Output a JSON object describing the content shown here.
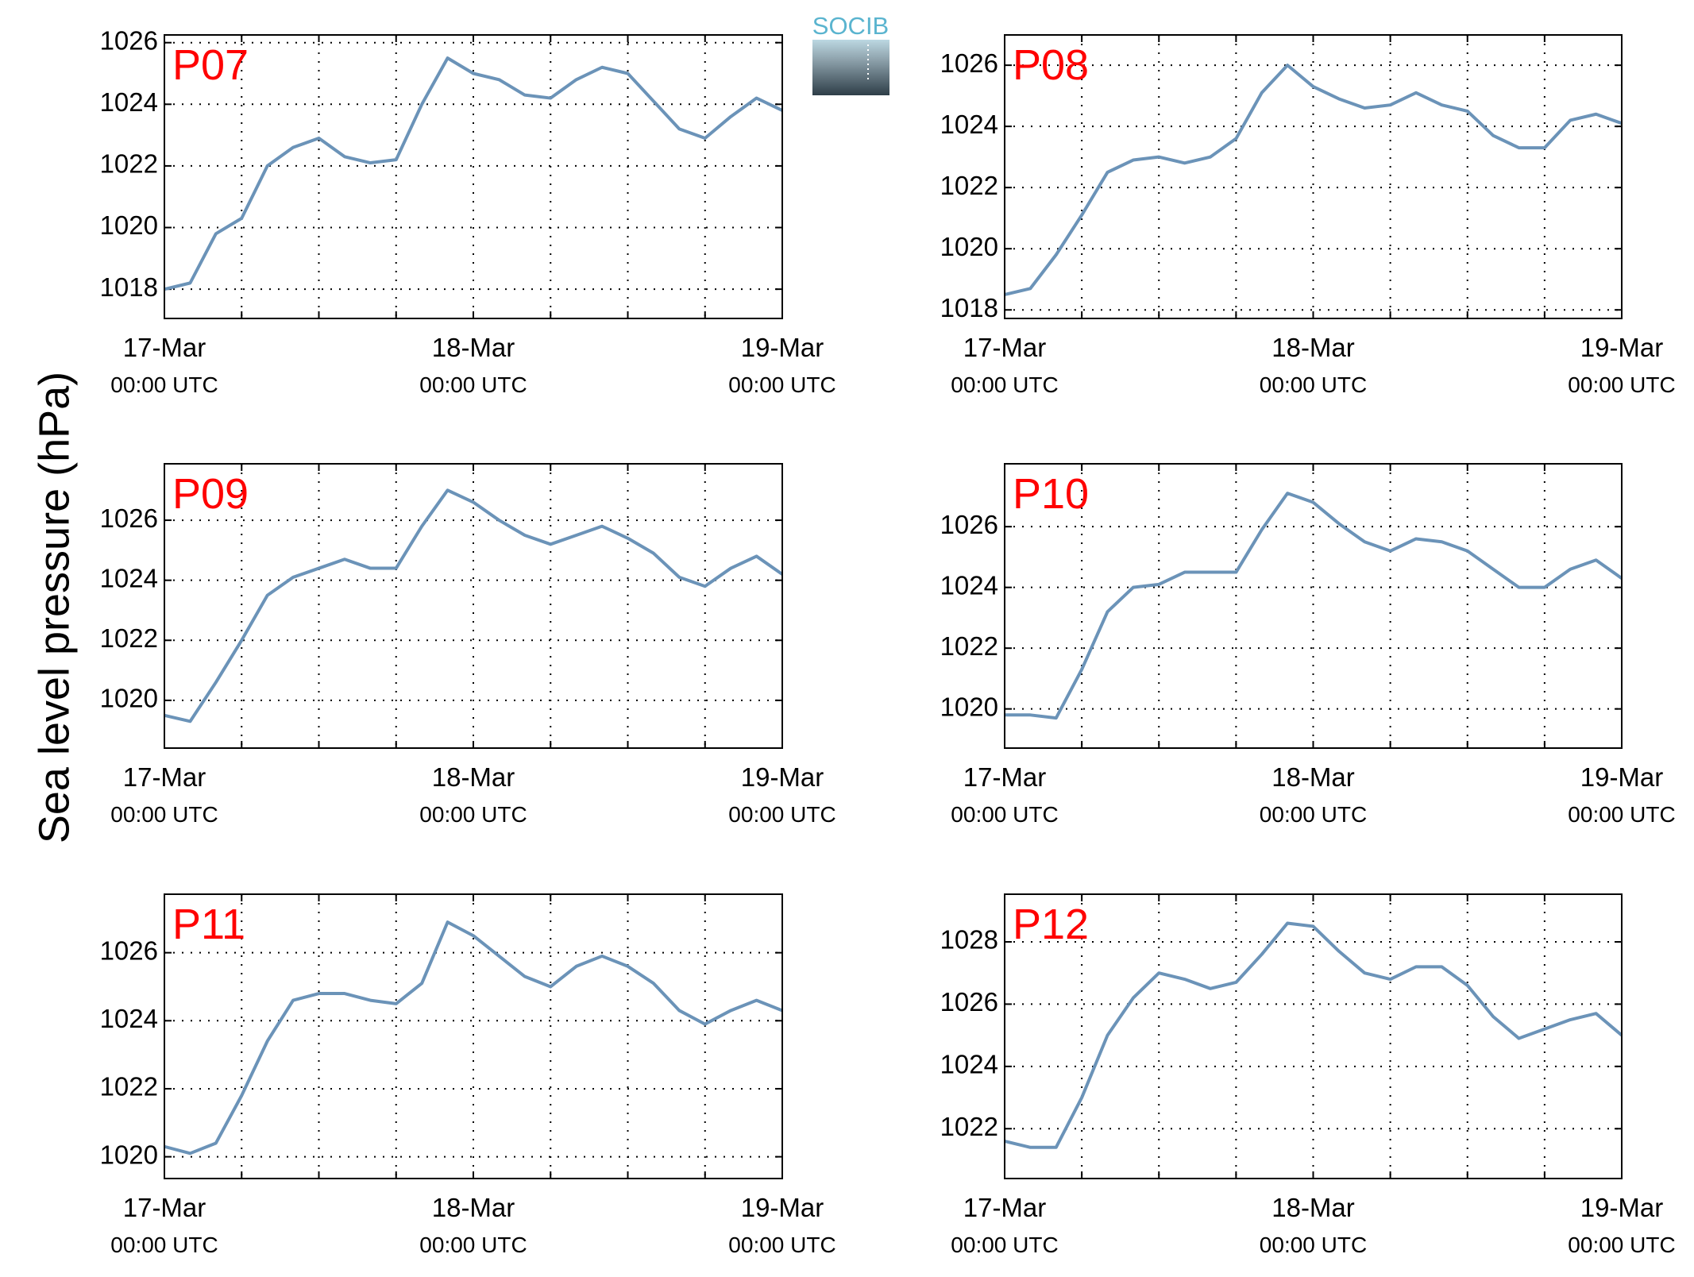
{
  "ylabel": "Sea level pressure (hPa)",
  "logo": "SOCIB",
  "chart_data": [
    {
      "type": "line",
      "title": "P07",
      "color": "#6b93b8",
      "grid": true,
      "x": [
        0,
        2,
        4,
        6,
        8,
        10,
        12,
        14,
        16,
        18,
        20,
        22,
        24,
        26,
        28,
        30,
        32,
        34,
        36,
        38,
        40,
        42,
        44,
        46,
        48
      ],
      "values": [
        1018.0,
        1018.2,
        1019.8,
        1020.3,
        1022.0,
        1022.6,
        1022.9,
        1022.3,
        1022.1,
        1022.2,
        1024.0,
        1025.5,
        1025.0,
        1024.8,
        1024.3,
        1024.2,
        1024.8,
        1025.2,
        1025.0,
        1024.1,
        1023.2,
        1022.9,
        1023.6,
        1024.2,
        1023.8
      ],
      "xlim": [
        0,
        48
      ],
      "ylim": [
        1017.05,
        1026.25
      ],
      "xticks": [
        {
          "value": 0,
          "label": [
            "17-Mar",
            "00:00 UTC"
          ]
        },
        {
          "value": 6,
          "label": null
        },
        {
          "value": 12,
          "label": null
        },
        {
          "value": 18,
          "label": null
        },
        {
          "value": 24,
          "label": [
            "18-Mar",
            "00:00 UTC"
          ]
        },
        {
          "value": 30,
          "label": null
        },
        {
          "value": 36,
          "label": null
        },
        {
          "value": 42,
          "label": null
        },
        {
          "value": 48,
          "label": [
            "19-Mar",
            "00:00 UTC"
          ]
        }
      ],
      "yticks": [
        1018,
        1020,
        1022,
        1024,
        1026
      ]
    },
    {
      "type": "line",
      "title": "P08",
      "color": "#6b93b8",
      "grid": true,
      "x": [
        0,
        2,
        4,
        6,
        8,
        10,
        12,
        14,
        16,
        18,
        20,
        22,
        24,
        26,
        28,
        30,
        32,
        34,
        36,
        38,
        40,
        42,
        44,
        46,
        48
      ],
      "values": [
        1018.5,
        1018.7,
        1019.8,
        1021.1,
        1022.5,
        1022.9,
        1023.0,
        1022.8,
        1023.0,
        1023.6,
        1025.1,
        1026.0,
        1025.3,
        1024.9,
        1024.6,
        1024.7,
        1025.1,
        1024.7,
        1024.5,
        1023.7,
        1023.3,
        1023.3,
        1024.2,
        1024.4,
        1024.1
      ],
      "xlim": [
        0,
        48
      ],
      "ylim": [
        1017.72,
        1026.99
      ],
      "xticks": [
        {
          "value": 0,
          "label": [
            "17-Mar",
            "00:00 UTC"
          ]
        },
        {
          "value": 6,
          "label": null
        },
        {
          "value": 12,
          "label": null
        },
        {
          "value": 18,
          "label": null
        },
        {
          "value": 24,
          "label": [
            "18-Mar",
            "00:00 UTC"
          ]
        },
        {
          "value": 30,
          "label": null
        },
        {
          "value": 36,
          "label": null
        },
        {
          "value": 42,
          "label": null
        },
        {
          "value": 48,
          "label": [
            "19-Mar",
            "00:00 UTC"
          ]
        }
      ],
      "yticks": [
        1018,
        1020,
        1022,
        1024,
        1026
      ]
    },
    {
      "type": "line",
      "title": "P09",
      "color": "#6b93b8",
      "grid": true,
      "x": [
        0,
        2,
        4,
        6,
        8,
        10,
        12,
        14,
        16,
        18,
        20,
        22,
        24,
        26,
        28,
        30,
        32,
        34,
        36,
        38,
        40,
        42,
        44,
        46,
        48
      ],
      "values": [
        1019.5,
        1019.3,
        1020.6,
        1022.0,
        1023.5,
        1024.1,
        1024.4,
        1024.7,
        1024.4,
        1024.4,
        1025.8,
        1027.0,
        1026.6,
        1026.0,
        1025.5,
        1025.2,
        1025.5,
        1025.8,
        1025.4,
        1024.9,
        1024.1,
        1023.8,
        1024.4,
        1024.8,
        1024.2
      ],
      "xlim": [
        0,
        48
      ],
      "ylim": [
        1018.41,
        1027.88
      ],
      "xticks": [
        {
          "value": 0,
          "label": [
            "17-Mar",
            "00:00 UTC"
          ]
        },
        {
          "value": 6,
          "label": null
        },
        {
          "value": 12,
          "label": null
        },
        {
          "value": 18,
          "label": null
        },
        {
          "value": 24,
          "label": [
            "18-Mar",
            "00:00 UTC"
          ]
        },
        {
          "value": 30,
          "label": null
        },
        {
          "value": 36,
          "label": null
        },
        {
          "value": 42,
          "label": null
        },
        {
          "value": 48,
          "label": [
            "19-Mar",
            "00:00 UTC"
          ]
        }
      ],
      "yticks": [
        1020,
        1022,
        1024,
        1026
      ]
    },
    {
      "type": "line",
      "title": "P10",
      "color": "#6b93b8",
      "grid": true,
      "x": [
        0,
        2,
        4,
        6,
        8,
        10,
        12,
        14,
        16,
        18,
        20,
        22,
        24,
        26,
        28,
        30,
        32,
        34,
        36,
        38,
        40,
        42,
        44,
        46,
        48
      ],
      "values": [
        1019.8,
        1019.8,
        1019.7,
        1021.3,
        1023.2,
        1024.0,
        1024.1,
        1024.5,
        1024.5,
        1024.5,
        1025.9,
        1027.1,
        1026.8,
        1026.1,
        1025.5,
        1025.2,
        1025.6,
        1025.5,
        1025.2,
        1024.6,
        1024.0,
        1024.0,
        1024.6,
        1024.9,
        1024.3
      ],
      "xlim": [
        0,
        48
      ],
      "ylim": [
        1018.71,
        1028.07
      ],
      "xticks": [
        {
          "value": 0,
          "label": [
            "17-Mar",
            "00:00 UTC"
          ]
        },
        {
          "value": 6,
          "label": null
        },
        {
          "value": 12,
          "label": null
        },
        {
          "value": 18,
          "label": null
        },
        {
          "value": 24,
          "label": [
            "18-Mar",
            "00:00 UTC"
          ]
        },
        {
          "value": 30,
          "label": null
        },
        {
          "value": 36,
          "label": null
        },
        {
          "value": 42,
          "label": null
        },
        {
          "value": 48,
          "label": [
            "19-Mar",
            "00:00 UTC"
          ]
        }
      ],
      "yticks": [
        1020,
        1022,
        1024,
        1026
      ]
    },
    {
      "type": "line",
      "title": "P11",
      "color": "#6b93b8",
      "grid": true,
      "x": [
        0,
        2,
        4,
        6,
        8,
        10,
        12,
        14,
        16,
        18,
        20,
        22,
        24,
        26,
        28,
        30,
        32,
        34,
        36,
        38,
        40,
        42,
        44,
        46,
        48
      ],
      "values": [
        1020.3,
        1020.1,
        1020.4,
        1021.8,
        1023.4,
        1024.6,
        1024.8,
        1024.8,
        1024.6,
        1024.5,
        1025.1,
        1026.9,
        1026.5,
        1025.9,
        1025.3,
        1025.0,
        1025.6,
        1025.9,
        1025.6,
        1025.1,
        1024.3,
        1023.9,
        1024.3,
        1024.6,
        1024.3
      ],
      "xlim": [
        0,
        48
      ],
      "ylim": [
        1019.36,
        1027.72
      ],
      "xticks": [
        {
          "value": 0,
          "label": [
            "17-Mar",
            "00:00 UTC"
          ]
        },
        {
          "value": 6,
          "label": null
        },
        {
          "value": 12,
          "label": null
        },
        {
          "value": 18,
          "label": null
        },
        {
          "value": 24,
          "label": [
            "18-Mar",
            "00:00 UTC"
          ]
        },
        {
          "value": 30,
          "label": null
        },
        {
          "value": 36,
          "label": null
        },
        {
          "value": 42,
          "label": null
        },
        {
          "value": 48,
          "label": [
            "19-Mar",
            "00:00 UTC"
          ]
        }
      ],
      "yticks": [
        1020,
        1022,
        1024,
        1026
      ]
    },
    {
      "type": "line",
      "title": "P12",
      "color": "#6b93b8",
      "grid": true,
      "x": [
        0,
        2,
        4,
        6,
        8,
        10,
        12,
        14,
        16,
        18,
        20,
        22,
        24,
        26,
        28,
        30,
        32,
        34,
        36,
        38,
        40,
        42,
        44,
        46,
        48
      ],
      "values": [
        1021.6,
        1021.4,
        1021.4,
        1023.0,
        1025.0,
        1026.2,
        1027.0,
        1026.8,
        1026.5,
        1026.7,
        1027.6,
        1028.6,
        1028.5,
        1027.7,
        1027.0,
        1026.8,
        1027.2,
        1027.2,
        1026.6,
        1025.6,
        1024.9,
        1025.2,
        1025.5,
        1025.7,
        1025.0
      ],
      "xlim": [
        0,
        48
      ],
      "ylim": [
        1020.4,
        1029.53
      ],
      "xticks": [
        {
          "value": 0,
          "label": [
            "17-Mar",
            "00:00 UTC"
          ]
        },
        {
          "value": 6,
          "label": null
        },
        {
          "value": 12,
          "label": null
        },
        {
          "value": 18,
          "label": null
        },
        {
          "value": 24,
          "label": [
            "18-Mar",
            "00:00 UTC"
          ]
        },
        {
          "value": 30,
          "label": null
        },
        {
          "value": 36,
          "label": null
        },
        {
          "value": 42,
          "label": null
        },
        {
          "value": 48,
          "label": [
            "19-Mar",
            "00:00 UTC"
          ]
        }
      ],
      "yticks": [
        1022,
        1024,
        1026,
        1028
      ]
    }
  ]
}
